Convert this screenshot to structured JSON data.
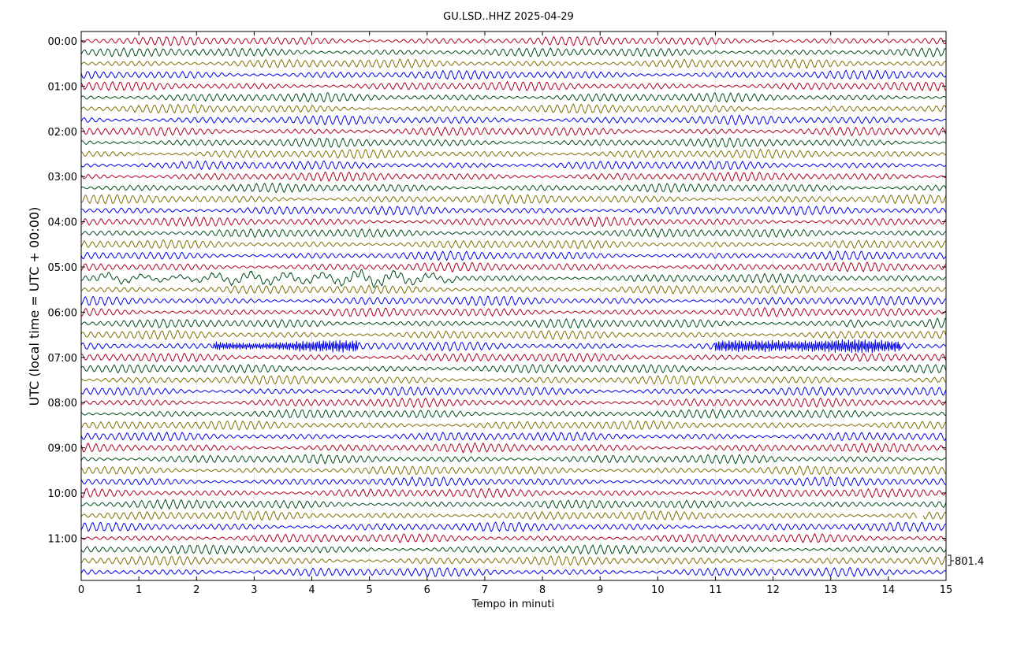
{
  "chart_data": {
    "type": "line",
    "title": "GU.LSD..HHZ 2025-04-29",
    "xlabel": "Tempo in minuti",
    "ylabel": "UTC (local time = UTC + 00:00)",
    "xlim": [
      0,
      15
    ],
    "x_ticks": [
      0,
      1,
      2,
      3,
      4,
      5,
      6,
      7,
      8,
      9,
      10,
      11,
      12,
      13,
      14,
      15
    ],
    "x_tick_labels": [
      "0",
      "1",
      "2",
      "3",
      "4",
      "5",
      "6",
      "7",
      "8",
      "9",
      "10",
      "11",
      "12",
      "13",
      "14",
      "15"
    ],
    "y_tick_labels": [
      "00:00",
      "01:00",
      "02:00",
      "03:00",
      "04:00",
      "05:00",
      "06:00",
      "07:00",
      "08:00",
      "09:00",
      "10:00",
      "11:00"
    ],
    "trace_count": 48,
    "minutes_per_trace": 15,
    "color_cycle": [
      "#b00020",
      "#004d1a",
      "#7f7000",
      "#0000ee"
    ],
    "scale_label": "801.4",
    "grid": true,
    "events": [
      {
        "trace": 21,
        "x_start": 0.3,
        "x_end": 6.5,
        "kind": "long-period wiggles"
      },
      {
        "trace": 25,
        "x_start": 13.2,
        "x_end": 15.0,
        "kind": "high-amplitude burst"
      },
      {
        "trace": 27,
        "x_start": 2.3,
        "x_end": 4.8,
        "kind": "high-frequency burst"
      },
      {
        "trace": 27,
        "x_start": 11.0,
        "x_end": 14.2,
        "kind": "high-frequency burst"
      },
      {
        "trace": 42,
        "x_start": 14.5,
        "x_end": 14.6,
        "kind": "data gap"
      }
    ]
  }
}
